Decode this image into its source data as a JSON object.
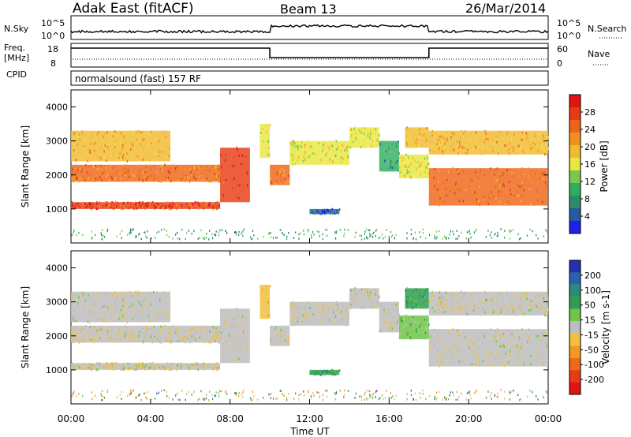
{
  "header": {
    "station": "Adak East (fitACF)",
    "beam": "Beam 13",
    "date": "26/Mar/2014"
  },
  "strip_nsky": {
    "left_label": "N.Sky",
    "right_label": "N.Search",
    "tick_top_left": "10^5",
    "tick_bot_left": "10^0",
    "tick_top_right": "10^5",
    "tick_bot_right": "10^0"
  },
  "strip_freq": {
    "left_label_line1": "Freq.",
    "left_label_line2": "[MHz]",
    "right_label": "Nave",
    "tick_top_left": "18",
    "tick_bot_left": "8",
    "tick_top_right": "60",
    "tick_bot_right": "0"
  },
  "strip_cpid": {
    "left_label": "CPID",
    "program": "normalsound (fast) 157 RF"
  },
  "axes": {
    "ylabel": "Slant Range [km]",
    "xlabel": "Time UT",
    "y_ticks": [
      "1000",
      "2000",
      "3000",
      "4000"
    ],
    "x_ticks": [
      "00:00",
      "04:00",
      "08:00",
      "12:00",
      "16:00",
      "20:00",
      "00:00"
    ]
  },
  "power_scale": {
    "label": "Power [dB]",
    "ticks": [
      "4",
      "8",
      "12",
      "16",
      "20",
      "24",
      "28"
    ],
    "colors": [
      "#1e20e8",
      "#245aa0",
      "#2e8a6a",
      "#2fae62",
      "#7cc84e",
      "#e9e640",
      "#f2ba2e",
      "#f2901e",
      "#ee6418",
      "#e63a14",
      "#e01410"
    ]
  },
  "velocity_scale": {
    "label": "Velocity [m s-1]",
    "ticks": [
      "200",
      "100",
      "50",
      "15",
      "-15",
      "-50",
      "-100",
      "-200"
    ],
    "colors": [
      "#2530b0",
      "#2a62a8",
      "#2f8a7a",
      "#2e9e50",
      "#72c44a",
      "#bdbdbd",
      "#f0c040",
      "#f09a22",
      "#ee6a18",
      "#e83a14",
      "#e01410"
    ]
  },
  "chart_data": {
    "type": "heatmap",
    "panels": [
      "Power [dB]",
      "Velocity [m s-1]"
    ],
    "x_range_hours_ut": [
      0,
      24
    ],
    "y_range_km": [
      0,
      4500
    ],
    "bands": [
      {
        "t_start": 0.0,
        "t_end": 7.5,
        "range_start_km": 1000,
        "range_end_km": 1200,
        "power_db": 28,
        "velocity": -15
      },
      {
        "t_start": 0.0,
        "t_end": 7.5,
        "range_start_km": 1800,
        "range_end_km": 2300,
        "power_db": 24,
        "velocity": -15
      },
      {
        "t_start": 0.0,
        "t_end": 5.0,
        "range_start_km": 2400,
        "range_end_km": 3300,
        "power_db": 20,
        "velocity": -15
      },
      {
        "t_start": 7.5,
        "t_end": 9.0,
        "range_start_km": 1200,
        "range_end_km": 2800,
        "power_db": 28,
        "velocity": -15
      },
      {
        "t_start": 9.5,
        "t_end": 10.0,
        "range_start_km": 2500,
        "range_end_km": 3500,
        "power_db": 16,
        "velocity": -50
      },
      {
        "t_start": 10.0,
        "t_end": 11.0,
        "range_start_km": 1700,
        "range_end_km": 2300,
        "power_db": 24,
        "velocity": -15
      },
      {
        "t_start": 11.0,
        "t_end": 14.0,
        "range_start_km": 2300,
        "range_end_km": 3000,
        "power_db": 16,
        "velocity": -15
      },
      {
        "t_start": 14.0,
        "t_end": 15.5,
        "range_start_km": 2800,
        "range_end_km": 3400,
        "power_db": 16,
        "velocity": -15
      },
      {
        "t_start": 15.5,
        "t_end": 16.5,
        "range_start_km": 2100,
        "range_end_km": 3000,
        "power_db": 8,
        "velocity": -15
      },
      {
        "t_start": 16.5,
        "t_end": 18.0,
        "range_start_km": 1900,
        "range_end_km": 2600,
        "power_db": 16,
        "velocity": 15
      },
      {
        "t_start": 16.8,
        "t_end": 18.0,
        "range_start_km": 2800,
        "range_end_km": 3400,
        "power_db": 20,
        "velocity": 50
      },
      {
        "t_start": 12.0,
        "t_end": 13.5,
        "range_start_km": 850,
        "range_end_km": 1000,
        "power_db": 4,
        "velocity": 50
      },
      {
        "t_start": 18.0,
        "t_end": 24.0,
        "range_start_km": 1100,
        "range_end_km": 2200,
        "power_db": 24,
        "velocity": -15
      },
      {
        "t_start": 18.0,
        "t_end": 24.0,
        "range_start_km": 2600,
        "range_end_km": 3300,
        "power_db": 20,
        "velocity": -15
      }
    ],
    "frequency_mhz": [
      {
        "t_start": 0,
        "t_end": 10,
        "value": 16
      },
      {
        "t_start": 10,
        "t_end": 18,
        "value": 12
      },
      {
        "t_start": 18,
        "t_end": 24,
        "value": 16
      }
    ]
  }
}
